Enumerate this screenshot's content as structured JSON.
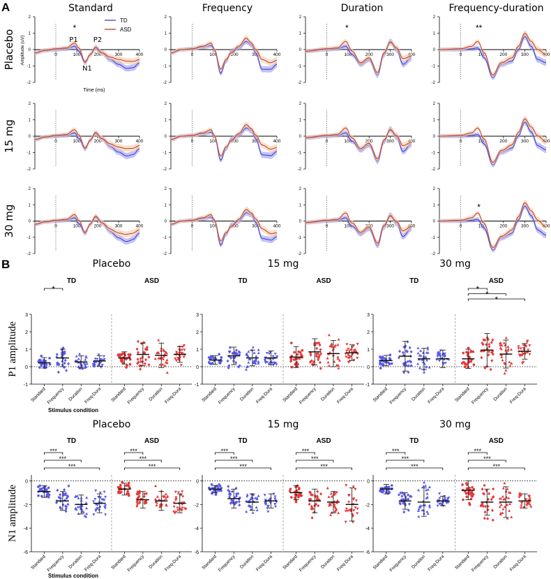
{
  "panel_labels": {
    "a": "A",
    "b": "B"
  },
  "chart_data": [
    {
      "type": "line",
      "panel": "A",
      "conditions": [
        "Standard",
        "Frequency",
        "Duration",
        "Frequency-duration"
      ],
      "doses": [
        "Placebo",
        "15 mg",
        "30 mg"
      ],
      "xlabel": "Time (ms)",
      "ylabel": "Amplitude (uV)",
      "xlim": [
        -100,
        400
      ],
      "ylim": [
        -2,
        2
      ],
      "xticks": [
        "0",
        "100",
        "200",
        "300",
        "400"
      ],
      "yticks": [
        "2",
        "1",
        "0",
        "-1",
        "-2"
      ],
      "legend": [
        {
          "name": "TD",
          "color": "#3a3ac8"
        },
        {
          "name": "ASD",
          "color": "#c0392b"
        }
      ],
      "peak_labels": {
        "p1": "P1",
        "n1": "N1",
        "p2": "P2"
      },
      "curves": {
        "Standard": {
          "TD": [
            [
              -100,
              -0.2
            ],
            [
              -50,
              -0.05
            ],
            [
              0,
              0
            ],
            [
              50,
              0.05
            ],
            [
              90,
              0.2
            ],
            [
              110,
              -0.1
            ],
            [
              140,
              -0.8
            ],
            [
              165,
              -0.3
            ],
            [
              190,
              0.1
            ],
            [
              220,
              -0.2
            ],
            [
              260,
              -0.6
            ],
            [
              300,
              -0.9
            ],
            [
              340,
              -1.15
            ],
            [
              370,
              -1.1
            ],
            [
              400,
              -0.8
            ]
          ],
          "ASD": [
            [
              -100,
              -0.2
            ],
            [
              -50,
              -0.05
            ],
            [
              0,
              0.05
            ],
            [
              50,
              0.1
            ],
            [
              90,
              0.4
            ],
            [
              110,
              0.1
            ],
            [
              140,
              -0.75
            ],
            [
              165,
              -0.3
            ],
            [
              190,
              0.15
            ],
            [
              220,
              -0.2
            ],
            [
              260,
              -0.45
            ],
            [
              300,
              -0.6
            ],
            [
              340,
              -0.7
            ],
            [
              370,
              -0.72
            ],
            [
              400,
              -0.6
            ]
          ]
        },
        "Frequency": {
          "TD": [
            [
              -100,
              -0.2
            ],
            [
              -50,
              0
            ],
            [
              0,
              0.05
            ],
            [
              50,
              0.15
            ],
            [
              90,
              0.25
            ],
            [
              105,
              0
            ],
            [
              135,
              -1.45
            ],
            [
              160,
              -0.7
            ],
            [
              185,
              -0.1
            ],
            [
              220,
              0.1
            ],
            [
              255,
              0.5
            ],
            [
              280,
              0.3
            ],
            [
              300,
              -0.2
            ],
            [
              330,
              -1.2
            ],
            [
              370,
              -1.2
            ],
            [
              400,
              -0.9
            ]
          ],
          "ASD": [
            [
              -100,
              -0.2
            ],
            [
              -50,
              0
            ],
            [
              0,
              0.05
            ],
            [
              50,
              0.2
            ],
            [
              90,
              0.4
            ],
            [
              105,
              0
            ],
            [
              135,
              -1.2
            ],
            [
              160,
              -0.6
            ],
            [
              185,
              -0.2
            ],
            [
              220,
              0.2
            ],
            [
              255,
              0.7
            ],
            [
              280,
              0.4
            ],
            [
              300,
              0
            ],
            [
              330,
              -0.6
            ],
            [
              370,
              -0.8
            ],
            [
              400,
              -0.65
            ]
          ]
        },
        "Duration": {
          "TD": [
            [
              -100,
              -0.1
            ],
            [
              0,
              0
            ],
            [
              50,
              0.05
            ],
            [
              90,
              0.2
            ],
            [
              120,
              -0.3
            ],
            [
              160,
              -0.9
            ],
            [
              200,
              -0.6
            ],
            [
              240,
              -1.55
            ],
            [
              270,
              -0.3
            ],
            [
              300,
              0.5
            ],
            [
              330,
              0
            ],
            [
              360,
              -0.9
            ],
            [
              400,
              -0.5
            ]
          ],
          "ASD": [
            [
              -100,
              -0.1
            ],
            [
              0,
              0.05
            ],
            [
              50,
              0.1
            ],
            [
              90,
              0.5
            ],
            [
              120,
              -0.1
            ],
            [
              160,
              -0.8
            ],
            [
              200,
              -0.5
            ],
            [
              240,
              -1.4
            ],
            [
              270,
              -0.2
            ],
            [
              300,
              0.45
            ],
            [
              330,
              0.1
            ],
            [
              360,
              -0.55
            ],
            [
              400,
              -0.4
            ]
          ]
        },
        "Frequency-duration": {
          "TD": [
            [
              -100,
              0
            ],
            [
              0,
              0
            ],
            [
              50,
              0.05
            ],
            [
              80,
              0.1
            ],
            [
              110,
              -0.5
            ],
            [
              150,
              -1.7
            ],
            [
              190,
              -0.9
            ],
            [
              240,
              -0.7
            ],
            [
              270,
              0
            ],
            [
              300,
              0.8
            ],
            [
              330,
              0.2
            ],
            [
              360,
              -0.6
            ],
            [
              400,
              -0.8
            ]
          ],
          "ASD": [
            [
              -100,
              0
            ],
            [
              0,
              0.05
            ],
            [
              50,
              0.2
            ],
            [
              80,
              0.5
            ],
            [
              110,
              -0.2
            ],
            [
              150,
              -1.55
            ],
            [
              190,
              -0.8
            ],
            [
              240,
              -0.5
            ],
            [
              270,
              0.2
            ],
            [
              300,
              1.0
            ],
            [
              330,
              0.5
            ],
            [
              360,
              0
            ],
            [
              400,
              -0.3
            ]
          ]
        }
      },
      "annotations": [
        {
          "dose": "Placebo",
          "condition": "Standard",
          "time": 90,
          "text": "*"
        },
        {
          "dose": "Placebo",
          "condition": "Duration",
          "time": 95,
          "text": "*"
        },
        {
          "dose": "Placebo",
          "condition": "Frequency-duration",
          "time": 85,
          "text": "**"
        },
        {
          "dose": "30 mg",
          "condition": "Frequency-duration",
          "time": 85,
          "text": "*"
        }
      ]
    },
    {
      "type": "scatter",
      "panel": "B",
      "xlabel": "Stimulus condition",
      "categories": [
        "Standard",
        "Frequency",
        "Duration",
        "Freq-Dura"
      ],
      "groups": [
        "TD",
        "ASD"
      ],
      "group_colors": {
        "TD": "#5a5ae6",
        "ASD": "#e63838"
      },
      "doses": [
        "Placebo",
        "15 mg",
        "30 mg"
      ],
      "measures": [
        {
          "ylabel": "P1 amplitude",
          "ylim": [
            -1,
            3
          ],
          "yticks": [
            "3",
            "2",
            "1",
            "0",
            "-1"
          ],
          "means": {
            "Placebo": {
              "TD": [
                0.22,
                0.5,
                0.27,
                0.33
              ],
              "ASD": [
                0.5,
                0.7,
                0.65,
                0.7
              ]
            },
            "15 mg": {
              "TD": [
                0.38,
                0.62,
                0.5,
                0.5
              ],
              "ASD": [
                0.55,
                0.85,
                0.75,
                0.8
              ]
            },
            "30 mg": {
              "TD": [
                0.35,
                0.6,
                0.45,
                0.45
              ],
              "ASD": [
                0.45,
                0.95,
                0.72,
                0.88
              ]
            }
          },
          "sd": {
            "Placebo": {
              "TD": [
                0.3,
                0.5,
                0.35,
                0.3
              ],
              "ASD": [
                0.35,
                0.65,
                0.7,
                0.45
              ]
            },
            "15 mg": {
              "TD": [
                0.25,
                0.5,
                0.45,
                0.4
              ],
              "ASD": [
                0.6,
                0.75,
                0.75,
                0.45
              ]
            },
            "30 mg": {
              "TD": [
                0.3,
                0.85,
                0.6,
                0.5
              ],
              "ASD": [
                0.55,
                0.95,
                0.8,
                0.45
              ]
            }
          },
          "significance": [
            {
              "dose": "Placebo",
              "group": "TD",
              "pairs": [
                [
                  0,
                  1
                ]
              ],
              "text": "*"
            },
            {
              "dose": "30 mg",
              "group": "ASD",
              "pairs": [
                [
                  0,
                  1
                ],
                [
                  0,
                  2
                ],
                [
                  0,
                  3
                ]
              ],
              "text": "*"
            }
          ]
        },
        {
          "ylabel": "N1 amplitude",
          "ylim": [
            -6,
            0.5
          ],
          "yticks": [
            "0",
            "-2",
            "-4",
            "-6"
          ],
          "means": {
            "Placebo": {
              "TD": [
                -0.9,
                -1.7,
                -2.0,
                -1.9
              ],
              "ASD": [
                -0.7,
                -1.6,
                -1.7,
                -1.9
              ]
            },
            "15 mg": {
              "TD": [
                -0.7,
                -1.5,
                -1.8,
                -1.7
              ],
              "ASD": [
                -1.0,
                -1.7,
                -1.8,
                -2.0
              ]
            },
            "30 mg": {
              "TD": [
                -0.7,
                -1.7,
                -1.8,
                -1.7
              ],
              "ASD": [
                -0.8,
                -1.8,
                -1.8,
                -1.7
              ]
            }
          },
          "sd": {
            "Placebo": {
              "TD": [
                0.5,
                0.8,
                0.8,
                0.8
              ],
              "ASD": [
                0.5,
                0.7,
                0.8,
                0.8
              ]
            },
            "15 mg": {
              "TD": [
                0.3,
                0.8,
                0.7,
                0.6
              ],
              "ASD": [
                0.6,
                1.0,
                0.9,
                1.4
              ]
            },
            "30 mg": {
              "TD": [
                0.4,
                0.7,
                1.2,
                0.4
              ],
              "ASD": [
                0.8,
                1.1,
                1.3,
                0.6
              ]
            }
          },
          "significance": [
            {
              "dose": "all",
              "group": "both",
              "pairs": [
                [
                  0,
                  1
                ],
                [
                  0,
                  2
                ],
                [
                  0,
                  3
                ]
              ],
              "text": "***"
            }
          ]
        }
      ]
    }
  ]
}
